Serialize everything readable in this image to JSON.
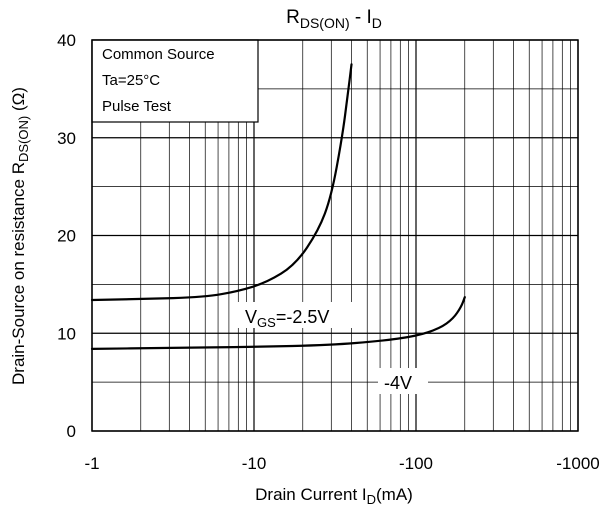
{
  "chart_data": {
    "type": "line",
    "title": {
      "main": "R",
      "sub1": "DS(ON)",
      "mid": " - I",
      "sub2": "D"
    },
    "xlabel": {
      "main": "Drain Current I",
      "sub": "D",
      "tail": "(mA)"
    },
    "ylabel": {
      "main": "Drain-Source on resistance R",
      "sub": "DS(ON)",
      "tail": " (Ω)"
    },
    "x_scale": "log",
    "xlim": [
      -1,
      -1000
    ],
    "ylim": [
      0,
      40
    ],
    "x_ticks": [
      {
        "value": -1,
        "label": "-1"
      },
      {
        "value": -10,
        "label": "-10"
      },
      {
        "value": -100,
        "label": "-100"
      },
      {
        "value": -1000,
        "label": "-1000"
      }
    ],
    "y_ticks": [
      {
        "value": 0,
        "label": "0"
      },
      {
        "value": 10,
        "label": "10"
      },
      {
        "value": 20,
        "label": "20"
      },
      {
        "value": 30,
        "label": "30"
      },
      {
        "value": 40,
        "label": "40"
      }
    ],
    "grid": true,
    "conditions_box": [
      "Common Source",
      "Ta=25°C",
      "Pulse Test"
    ],
    "series": [
      {
        "name": "VGS=-2.5V",
        "points": [
          [
            -1,
            13.4
          ],
          [
            -2,
            13.5
          ],
          [
            -5,
            13.7
          ],
          [
            -8,
            14.3
          ],
          [
            -12,
            15.2
          ],
          [
            -18,
            17.0
          ],
          [
            -25,
            20.5
          ],
          [
            -30,
            24.0
          ],
          [
            -35,
            30.0
          ],
          [
            -38,
            34.5
          ],
          [
            -40,
            37.5
          ]
        ]
      },
      {
        "name": "-4V",
        "points": [
          [
            -1,
            8.4
          ],
          [
            -3,
            8.5
          ],
          [
            -10,
            8.6
          ],
          [
            -30,
            8.8
          ],
          [
            -60,
            9.2
          ],
          [
            -100,
            9.7
          ],
          [
            -140,
            10.5
          ],
          [
            -170,
            11.5
          ],
          [
            -190,
            12.7
          ],
          [
            -200,
            13.7
          ]
        ]
      }
    ],
    "annotations": [
      {
        "label": {
          "main": "V",
          "sub": "GS",
          "tail": "=-2.5V"
        },
        "x": -25,
        "y": 11.5
      },
      {
        "label": {
          "main": "-4V"
        },
        "x": -80,
        "y": 5.2
      }
    ]
  }
}
